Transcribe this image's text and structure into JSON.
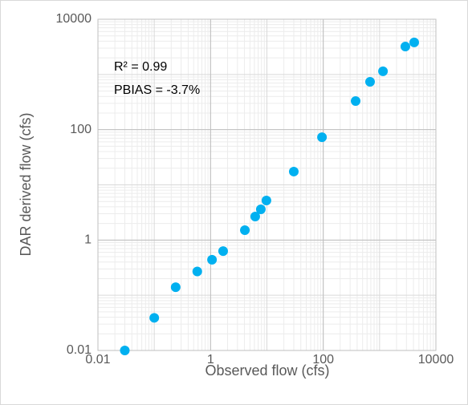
{
  "chart_data": {
    "type": "scatter",
    "x_label": "Observed flow (cfs)",
    "y_label": "DAR derived flow (cfs)",
    "annotations": [
      "R² = 0.99",
      "PBIAS = -3.7%"
    ],
    "x_scale": "log",
    "y_scale": "log",
    "grid": true,
    "xlim": [
      0.01,
      10000
    ],
    "ylim": [
      0.01,
      10000
    ],
    "xticks": [
      0.01,
      1,
      100,
      10000
    ],
    "yticks": [
      0.01,
      1,
      100,
      10000
    ],
    "series": [
      {
        "color": "#00b0f0",
        "x": [
          0.03,
          0.1,
          0.24,
          0.58,
          1.06,
          1.67,
          4.06,
          6.2,
          7.8,
          9.8,
          30,
          95,
          376,
          678,
          1150,
          2870,
          4120
        ],
        "values": [
          0.01,
          0.039,
          0.14,
          0.27,
          0.44,
          0.63,
          1.51,
          2.67,
          3.6,
          5.2,
          17.4,
          73,
          330,
          736,
          1140,
          3200,
          3800
        ]
      }
    ]
  }
}
